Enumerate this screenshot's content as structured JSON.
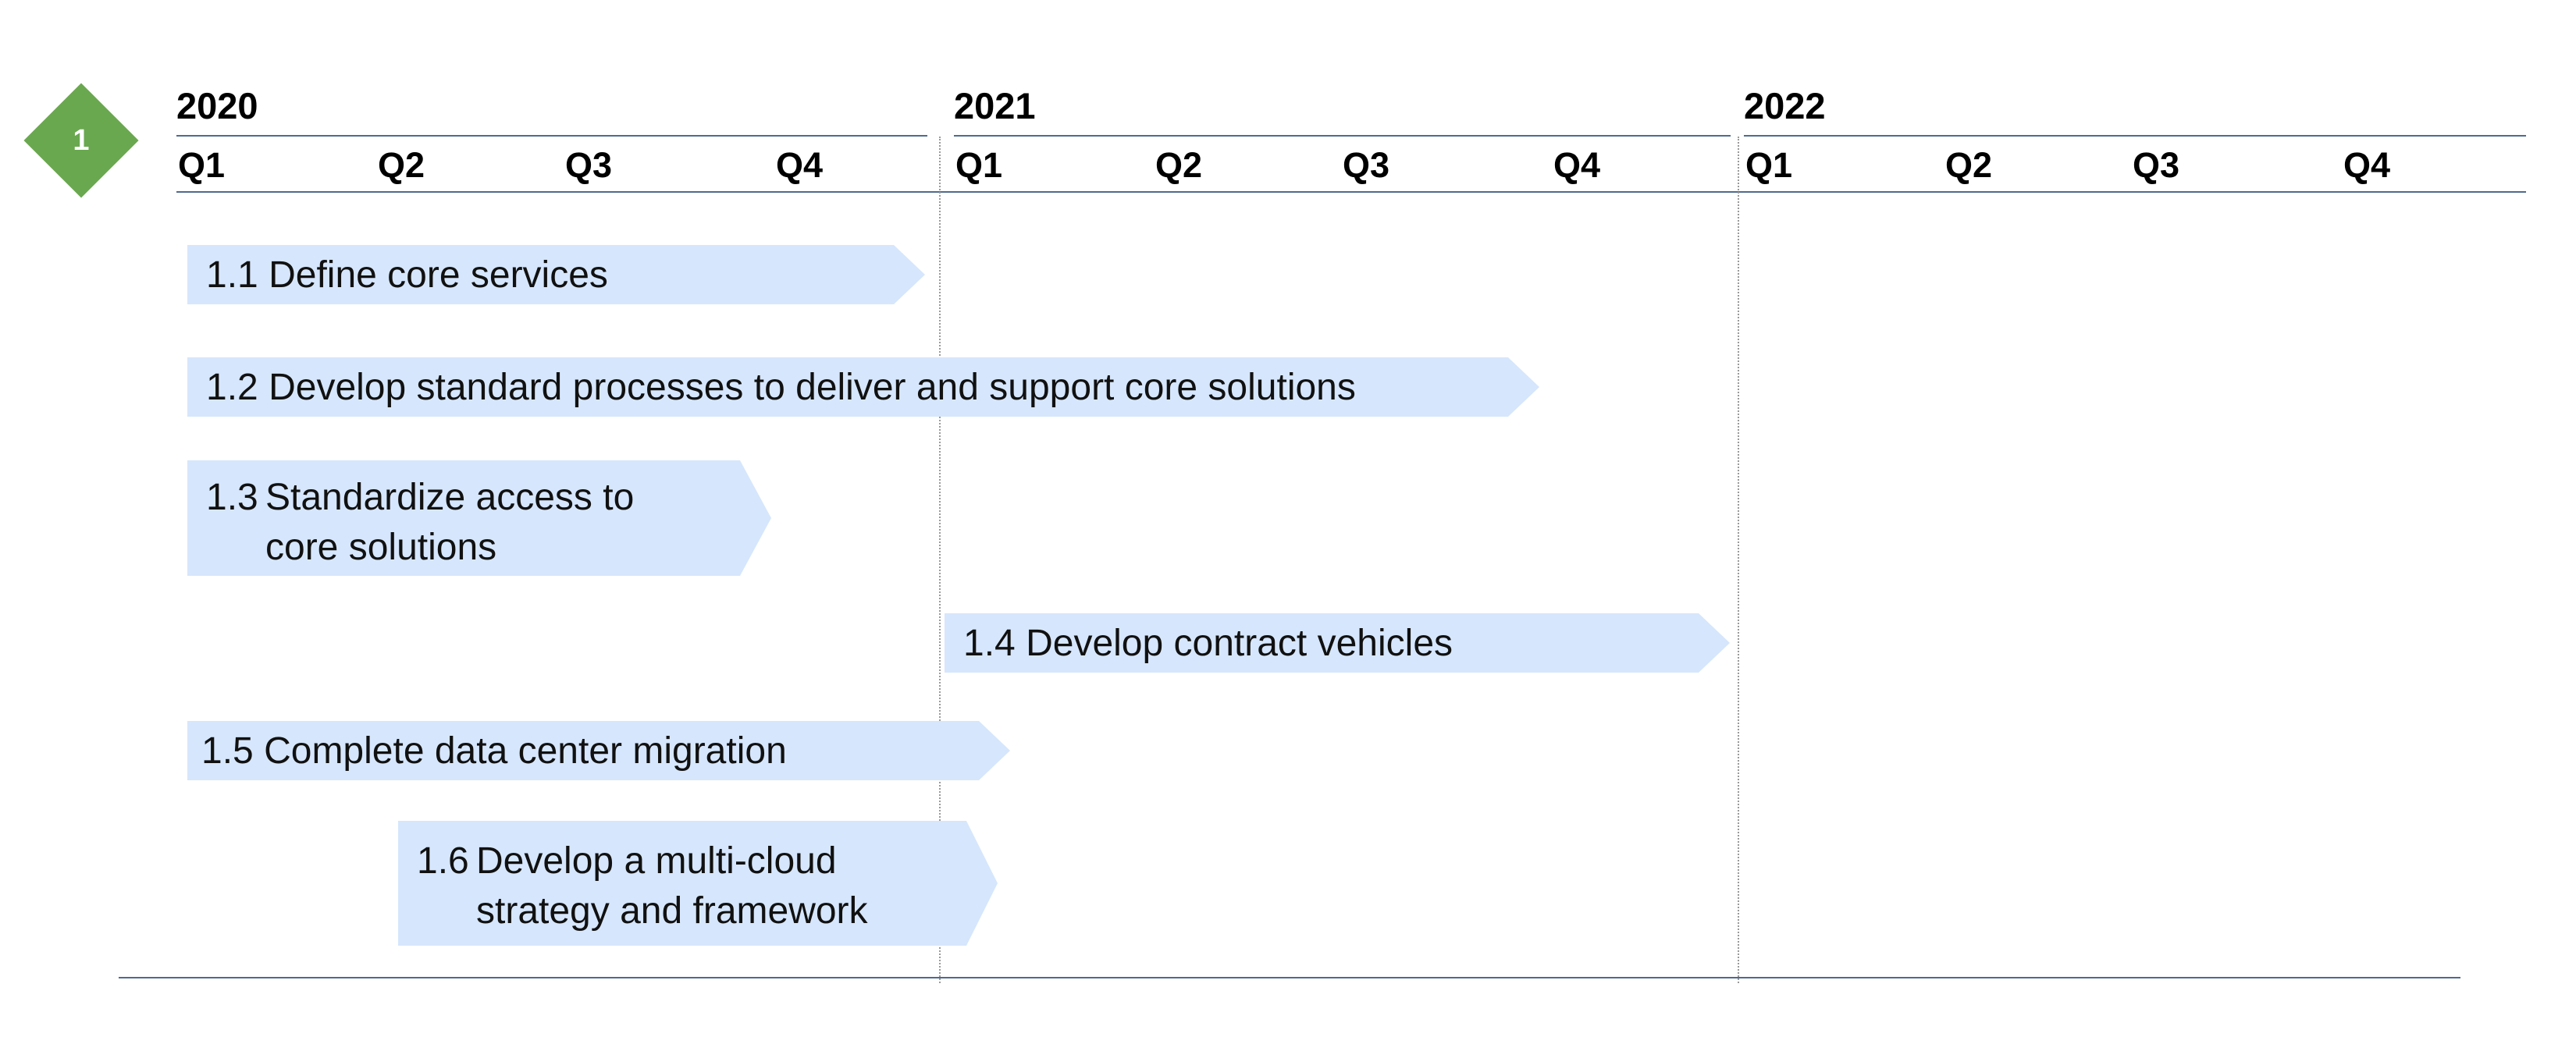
{
  "badge": {
    "label": "1",
    "color": "#6aa84f"
  },
  "timeline": {
    "years": [
      "2020",
      "2021",
      "2022"
    ],
    "quarters": [
      "Q1",
      "Q2",
      "Q3",
      "Q4"
    ]
  },
  "tasks": [
    {
      "number": "1.1",
      "text": "Define core services"
    },
    {
      "number": "1.2",
      "text": "Develop standard processes to deliver and support core solutions"
    },
    {
      "number": "1.3",
      "line1": "Standardize access to",
      "line2": "core solutions"
    },
    {
      "number": "1.4",
      "text": "Develop contract vehicles"
    },
    {
      "number": "1.5",
      "text": "Complete data center migration"
    },
    {
      "number": "1.6",
      "line1": "Develop a multi-cloud",
      "line2": "strategy and framework"
    }
  ],
  "colors": {
    "task_fill": "#d6e6fc",
    "rule_line": "#4f6a8f",
    "divider": "#9a9a9a"
  }
}
